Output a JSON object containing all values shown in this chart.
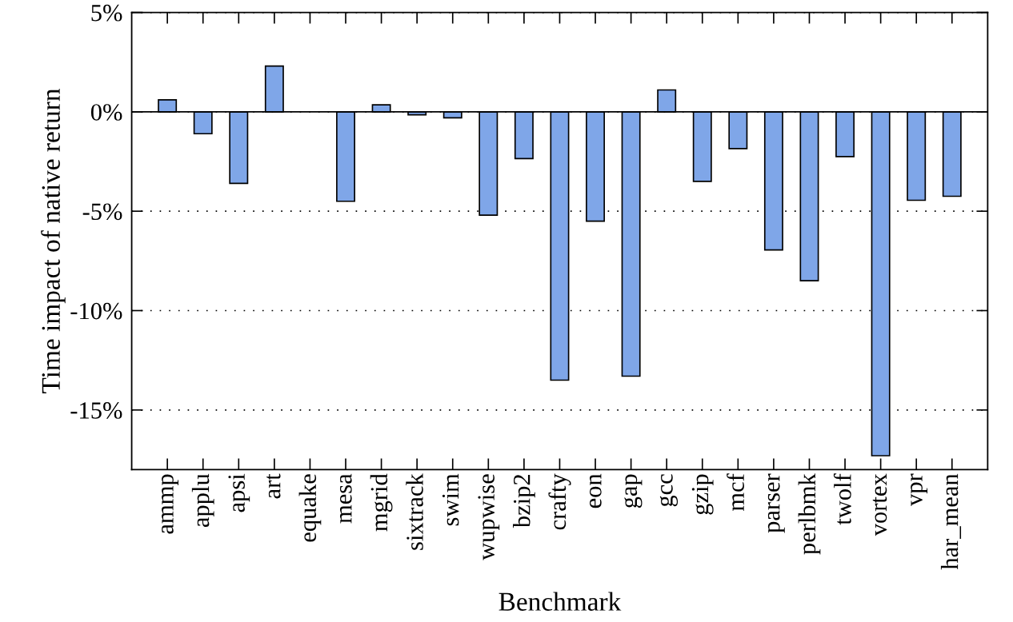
{
  "chart_data": {
    "type": "bar",
    "xlabel": "Benchmark",
    "ylabel": "Time impact of native return",
    "categories": [
      "ammp",
      "applu",
      "apsi",
      "art",
      "equake",
      "mesa",
      "mgrid",
      "sixtrack",
      "swim",
      "wupwise",
      "bzip2",
      "crafty",
      "eon",
      "gap",
      "gcc",
      "gzip",
      "mcf",
      "parser",
      "perlbmk",
      "twolf",
      "vortex",
      "vpr",
      "har_mean"
    ],
    "values": [
      0.6,
      -1.1,
      -3.6,
      2.3,
      null,
      -4.5,
      0.35,
      -0.15,
      -0.3,
      -5.2,
      -2.35,
      -13.5,
      -5.5,
      -13.3,
      1.1,
      -3.5,
      -1.85,
      -6.95,
      -8.5,
      -2.25,
      -17.3,
      -4.45,
      -4.25
    ],
    "color": "#7fa6e8",
    "ylim": [
      -18,
      5
    ],
    "yticks": [
      {
        "value": 5,
        "label": "5%"
      },
      {
        "value": 0,
        "label": "0%"
      },
      {
        "value": -5,
        "label": "-5%"
      },
      {
        "value": -10,
        "label": "-10%"
      },
      {
        "value": -15,
        "label": "-15%"
      }
    ],
    "grid": "y",
    "ref_lines": [
      {
        "axis": "y",
        "value": 0,
        "color": "#000000",
        "line_style": "solid"
      }
    ]
  }
}
